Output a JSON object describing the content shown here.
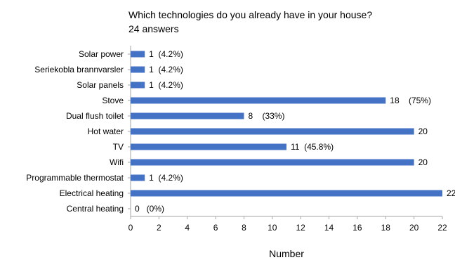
{
  "chart_data": {
    "type": "bar",
    "orientation": "horizontal",
    "title": "Which technologies do you already have in your house?",
    "subtitle": "24 answers",
    "xlabel": "Number",
    "ylabel": "",
    "xlim": [
      0,
      22
    ],
    "xticks": [
      0,
      2,
      4,
      6,
      8,
      10,
      12,
      14,
      16,
      18,
      20,
      22
    ],
    "grid": false,
    "bar_color": "#4472c4",
    "categories": [
      "Solar power",
      "Seriekobla brannvarsler",
      "Solar panels",
      "Stove",
      "Dual flush toilet",
      "Hot water",
      "TV",
      "Wifi",
      "Programmable thermostat",
      "Electrical heating",
      "Central heating"
    ],
    "values": [
      1,
      1,
      1,
      18,
      8,
      20,
      11,
      20,
      1,
      22,
      0
    ],
    "data_labels": [
      "1  (4.2%)",
      "1  (4.2%)",
      "1  (4.2%)",
      "18    (75%)",
      "8    (33%)",
      "20",
      "11  (45.8%)",
      "20",
      "1  (4.2%)",
      "22",
      "0   (0%)"
    ]
  }
}
